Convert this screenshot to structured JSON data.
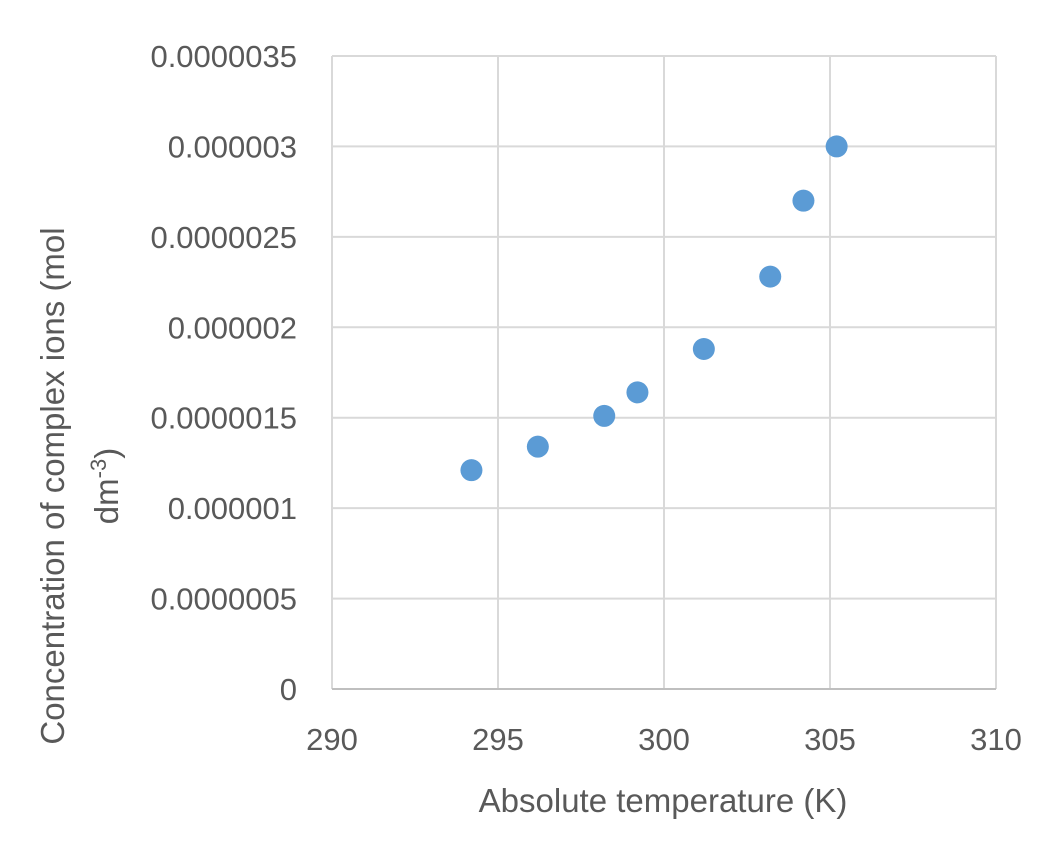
{
  "chart_data": {
    "type": "scatter",
    "x": [
      294.2,
      296.2,
      298.2,
      299.2,
      301.2,
      303.2,
      304.2,
      305.2
    ],
    "y": [
      1.21e-06,
      1.34e-06,
      1.51e-06,
      1.64e-06,
      1.88e-06,
      2.28e-06,
      2.7e-06,
      3e-06
    ],
    "xlabel": "Absolute temperature (K)",
    "ylabel_main": "Concentration of complex ions (mol",
    "ylabel_unit": "dm",
    "ylabel_sup": "-3",
    "ylabel_end": ")",
    "xlim": [
      290,
      310
    ],
    "ylim": [
      0,
      3.5e-06
    ],
    "x_ticks": [
      "290",
      "295",
      "300",
      "305",
      "310"
    ],
    "y_ticks": [
      "0",
      "0.0000005",
      "0.000001",
      "0.0000015",
      "0.000002",
      "0.0000025",
      "0.000003",
      "0.0000035"
    ],
    "grid": true,
    "marker_color": "#5b9bd5"
  }
}
